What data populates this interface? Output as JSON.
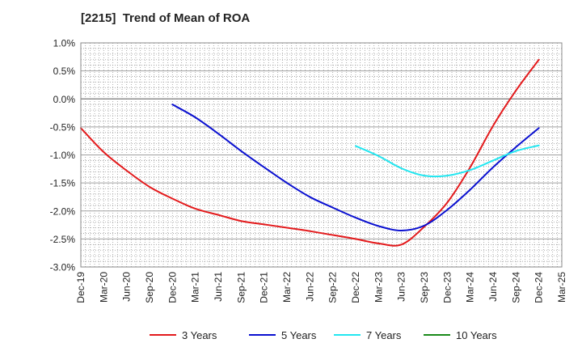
{
  "chart_data": {
    "type": "line",
    "title": "[2215]  Trend of Mean of ROA",
    "xlabel": "",
    "ylabel": "",
    "ylim": [
      -3.0,
      1.0
    ],
    "yticks": [
      1.0,
      0.5,
      0.0,
      -0.5,
      -1.0,
      -1.5,
      -2.0,
      -2.5,
      -3.0
    ],
    "ytick_labels": [
      "1.0%",
      "0.5%",
      "0.0%",
      "-0.5%",
      "-1.0%",
      "-1.5%",
      "-2.0%",
      "-2.5%",
      "-3.0%"
    ],
    "categories": [
      "Dec-19",
      "Mar-20",
      "Jun-20",
      "Sep-20",
      "Dec-20",
      "Mar-21",
      "Jun-21",
      "Sep-21",
      "Dec-21",
      "Mar-22",
      "Jun-22",
      "Sep-22",
      "Dec-22",
      "Mar-23",
      "Jun-23",
      "Sep-23",
      "Dec-23",
      "Mar-24",
      "Jun-24",
      "Sep-24",
      "Dec-24",
      "Mar-25"
    ],
    "grid": true,
    "legend_position": "bottom",
    "series": [
      {
        "name": "3 Years",
        "color": "#e31a1c",
        "x": [
          "Dec-19",
          "Mar-20",
          "Jun-20",
          "Sep-20",
          "Dec-20",
          "Mar-21",
          "Jun-21",
          "Sep-21",
          "Dec-21",
          "Mar-22",
          "Jun-22",
          "Sep-22",
          "Dec-22",
          "Mar-23",
          "Jun-23",
          "Sep-23",
          "Dec-23",
          "Mar-24",
          "Jun-24",
          "Sep-24",
          "Dec-24"
        ],
        "values": [
          -0.52,
          -0.95,
          -1.28,
          -1.57,
          -1.78,
          -1.96,
          -2.07,
          -2.18,
          -2.24,
          -2.3,
          -2.36,
          -2.43,
          -2.5,
          -2.58,
          -2.6,
          -2.28,
          -1.85,
          -1.22,
          -0.48,
          0.15,
          0.7
        ]
      },
      {
        "name": "5 Years",
        "color": "#0a10d0",
        "x": [
          "Dec-20",
          "Mar-21",
          "Jun-21",
          "Sep-21",
          "Dec-21",
          "Mar-22",
          "Jun-22",
          "Sep-22",
          "Dec-22",
          "Mar-23",
          "Jun-23",
          "Sep-23",
          "Dec-23",
          "Mar-24",
          "Jun-24",
          "Sep-24",
          "Dec-24"
        ],
        "values": [
          -0.1,
          -0.33,
          -0.62,
          -0.93,
          -1.22,
          -1.5,
          -1.75,
          -1.94,
          -2.12,
          -2.27,
          -2.35,
          -2.26,
          -1.98,
          -1.62,
          -1.22,
          -0.86,
          -0.52
        ]
      },
      {
        "name": "7 Years",
        "color": "#22e6f0",
        "x": [
          "Dec-22",
          "Mar-23",
          "Jun-23",
          "Sep-23",
          "Dec-23",
          "Mar-24",
          "Jun-24",
          "Sep-24",
          "Dec-24"
        ],
        "values": [
          -0.84,
          -1.02,
          -1.24,
          -1.37,
          -1.37,
          -1.27,
          -1.1,
          -0.93,
          -0.83
        ]
      },
      {
        "name": "10 Years",
        "color": "#1a8a1a",
        "x": [],
        "values": []
      }
    ]
  }
}
